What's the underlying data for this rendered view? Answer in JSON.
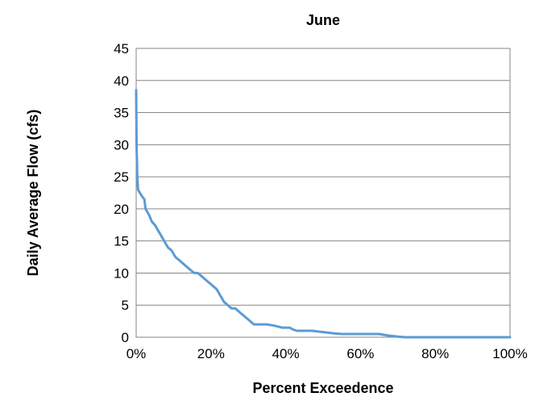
{
  "chart_data": {
    "type": "line",
    "title": "June",
    "xlabel": "Percent Exceedence",
    "ylabel": "Daily Average Flow (cfs)",
    "xlim": [
      0,
      100
    ],
    "ylim": [
      0,
      45
    ],
    "x_ticks": [
      0,
      20,
      40,
      60,
      80,
      100
    ],
    "x_tick_labels": [
      "0%",
      "20%",
      "40%",
      "60%",
      "80%",
      "100%"
    ],
    "y_ticks": [
      0,
      5,
      10,
      15,
      20,
      25,
      30,
      35,
      40,
      45
    ],
    "y_tick_labels": [
      "0",
      "5",
      "10",
      "15",
      "20",
      "25",
      "30",
      "35",
      "40",
      "45"
    ],
    "grid": "horizontal",
    "legend": "none",
    "series": [
      {
        "color": "#5B9BD5",
        "x": [
          0,
          0.1,
          0.3,
          0.5,
          0.7,
          1,
          1.5,
          2.2,
          2.5,
          3,
          3.5,
          4.2,
          5,
          5.5,
          6.5,
          7.5,
          8.5,
          9.5,
          10.5,
          11.5,
          12.5,
          13.5,
          14.5,
          15.5,
          16.5,
          17.5,
          18.5,
          19.5,
          20.5,
          21.5,
          22.5,
          23.5,
          24.5,
          25.5,
          26.5,
          27.5,
          28.5,
          29.5,
          30.5,
          31.5,
          33,
          35,
          37,
          39,
          41,
          42,
          43,
          45,
          47,
          50,
          53,
          55,
          60,
          62,
          65,
          67,
          70,
          72,
          75,
          80,
          85,
          90,
          95,
          100
        ],
        "y": [
          38.5,
          30,
          25,
          23,
          22.8,
          22.5,
          22,
          21.5,
          20,
          19.5,
          19,
          18,
          17.5,
          17,
          16,
          15,
          14,
          13.5,
          12.5,
          12,
          11.5,
          11,
          10.5,
          10,
          10,
          9.5,
          9,
          8.5,
          8,
          7.5,
          6.5,
          5.5,
          5,
          4.5,
          4.5,
          4,
          3.5,
          3,
          2.5,
          2,
          2,
          2,
          1.8,
          1.5,
          1.5,
          1.2,
          1,
          1,
          1,
          0.8,
          0.6,
          0.5,
          0.5,
          0.5,
          0.5,
          0.3,
          0.1,
          0,
          0,
          0,
          0,
          0,
          0,
          0
        ]
      }
    ]
  }
}
